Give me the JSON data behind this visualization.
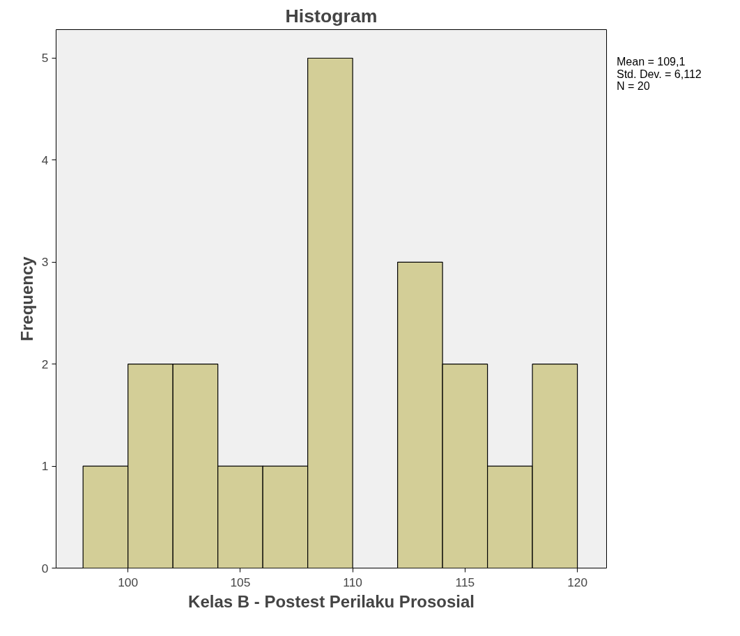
{
  "chart_data": {
    "type": "histogram",
    "title": "Histogram",
    "xlabel": "Kelas B - Postest Perilaku Prososial",
    "ylabel": "Frequency",
    "bins": [
      98,
      100,
      102,
      104,
      106,
      108,
      110,
      112,
      114,
      116,
      118,
      120
    ],
    "values": [
      1,
      2,
      2,
      1,
      1,
      5,
      0,
      3,
      2,
      1,
      2
    ],
    "color": "#d3ce97",
    "xlim": [
      96.8,
      121.3
    ],
    "ylim": [
      0,
      5.28
    ],
    "xticks": [
      100,
      105,
      110,
      115,
      120
    ],
    "yticks": [
      0,
      1,
      2,
      3,
      4,
      5
    ],
    "grid": false,
    "annotations": [
      "Mean = 109,1",
      "Std. Dev. = 6,112",
      "N = 20"
    ]
  }
}
